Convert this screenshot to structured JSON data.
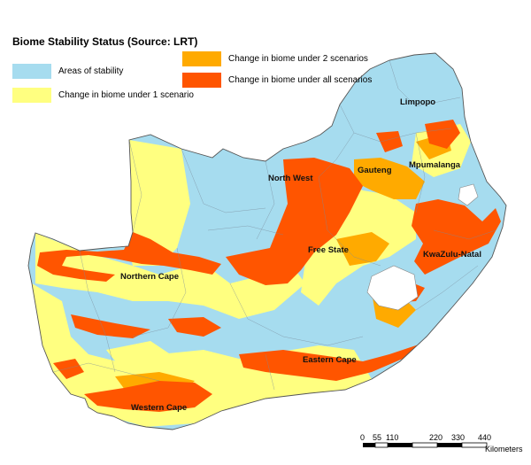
{
  "legend": {
    "title": "Biome Stability Status (Source: LRT)",
    "items": [
      {
        "label": "Areas of stability",
        "color": "#a6dcef"
      },
      {
        "label": "Change in biome under 1 scenario",
        "color": "#ffff80"
      },
      {
        "label": "Change in biome under 2 scenarios",
        "color": "#ffaa00"
      },
      {
        "label": "Change in biome under all scenarios",
        "color": "#ff5500"
      }
    ]
  },
  "places": {
    "limpopo": "Limpopo",
    "north_west": "North West",
    "gauteng": "Gauteng",
    "mpumalanga": "Mpumalanga",
    "free_state": "Free State",
    "kwazulu_natal": "KwaZulu-Natal",
    "northern_cape": "Northern Cape",
    "eastern_cape": "Eastern Cape",
    "western_cape": "Western Cape"
  },
  "scale_bar": {
    "ticks": [
      "0",
      "55",
      "110",
      "220",
      "330",
      "440"
    ],
    "unit": "Kilometers"
  }
}
